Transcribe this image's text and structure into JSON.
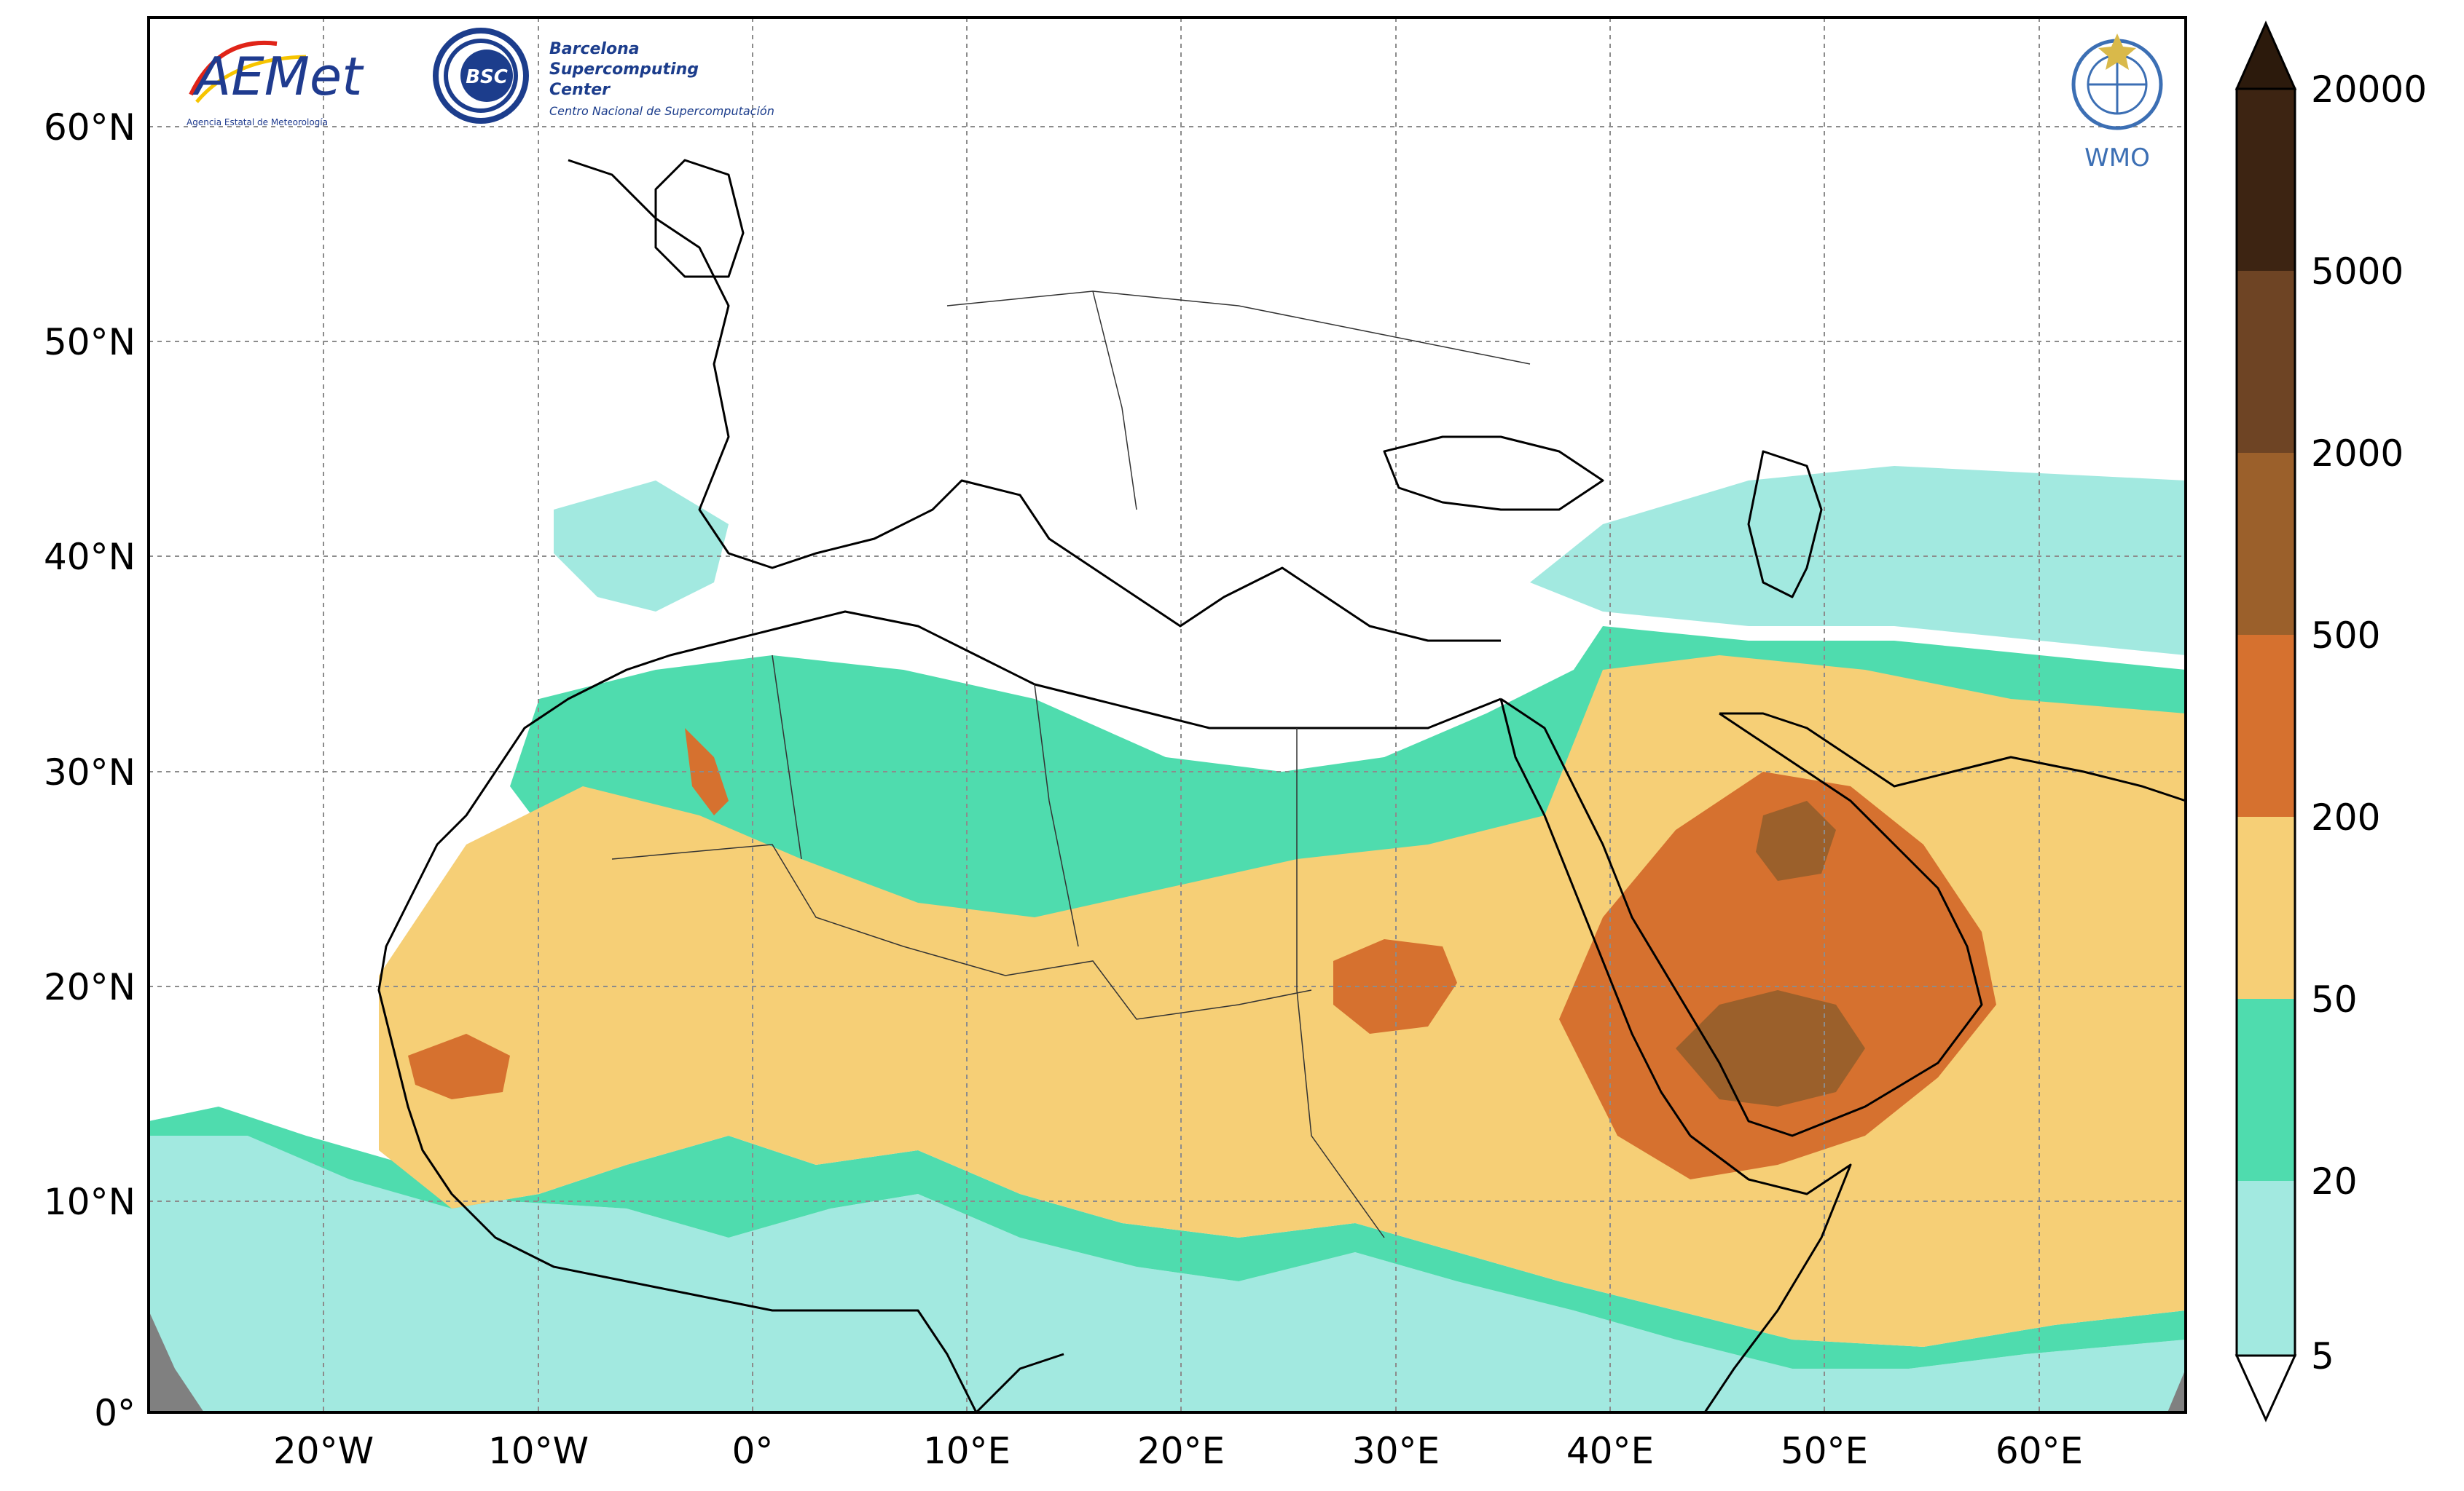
{
  "map": {
    "x_ticks": [
      "20°W",
      "10°W",
      "0°",
      "10°E",
      "20°E",
      "30°E",
      "40°E",
      "50°E",
      "60°E"
    ],
    "y_ticks": [
      "60°N",
      "50°N",
      "40°N",
      "30°N",
      "20°N",
      "10°N",
      "0°"
    ],
    "grid": true,
    "projection": "equidistant-lon-lat",
    "lon_range": [
      -28,
      67
    ],
    "lat_range": [
      0,
      65
    ]
  },
  "colorbar": {
    "labels": [
      "20000",
      "5000",
      "2000",
      "500",
      "200",
      "50",
      "20",
      "5"
    ],
    "colors": [
      "#3d2412",
      "#6e4424",
      "#9b602b",
      "#d6712f",
      "#f6cf76",
      "#4fdcae",
      "#a2e9e0",
      "#ffffff"
    ],
    "extend": "both"
  },
  "logos": {
    "aemet": {
      "name": "AEMet",
      "subtitle": "Agencia Estatal de Meteorología",
      "colors": [
        "#1f3b8f",
        "#e02418",
        "#f6c400"
      ]
    },
    "bsc": {
      "badge": "BSC",
      "line1": "Barcelona",
      "line2": "Supercomputing",
      "line3": "Center",
      "line4": "Centro Nacional de Supercomputación",
      "color": "#1c3d8c"
    },
    "wmo": {
      "label": "WMO",
      "color": "#3c6fb4"
    }
  }
}
